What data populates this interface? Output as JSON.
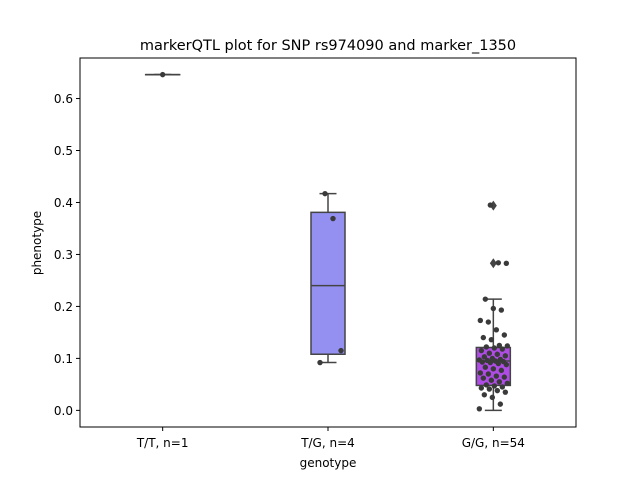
{
  "chart_data": {
    "type": "box",
    "title": "markerQTL plot for SNP rs974090 and marker_1350",
    "xlabel": "genotype",
    "ylabel": "phenotype",
    "ylim": [
      -0.032,
      0.678
    ],
    "yticks": [
      0.0,
      0.1,
      0.2,
      0.3,
      0.4,
      0.5,
      0.6
    ],
    "ytick_labels": [
      "0.0",
      "0.1",
      "0.2",
      "0.3",
      "0.4",
      "0.5",
      "0.6"
    ],
    "categories": [
      "T/T, n=1",
      "T/G, n=4",
      "G/G, n=54"
    ],
    "colors": [
      "#5a5ae0",
      "#9490f2",
      "#b04ce6"
    ],
    "point_color": "#3a3a3a",
    "groups": [
      {
        "label": "T/T, n=1",
        "q1": 0.646,
        "median": 0.646,
        "q3": 0.646,
        "whisker_low": 0.646,
        "whisker_high": 0.646,
        "outliers": [],
        "points": [
          0.646
        ]
      },
      {
        "label": "T/G, n=4",
        "q1": 0.108,
        "median": 0.24,
        "q3": 0.381,
        "whisker_low": 0.092,
        "whisker_high": 0.417,
        "outliers": [],
        "points": [
          0.417,
          0.369,
          0.115,
          0.092
        ]
      },
      {
        "label": "G/G, n=54",
        "q1": 0.048,
        "median": 0.095,
        "q3": 0.121,
        "whisker_low": 0.0,
        "whisker_high": 0.214,
        "outliers": [
          0.394,
          0.283
        ],
        "points": [
          0.395,
          0.284,
          0.283,
          0.214,
          0.196,
          0.193,
          0.173,
          0.17,
          0.155,
          0.145,
          0.14,
          0.136,
          0.125,
          0.124,
          0.122,
          0.12,
          0.118,
          0.115,
          0.11,
          0.108,
          0.105,
          0.103,
          0.1,
          0.098,
          0.097,
          0.096,
          0.095,
          0.094,
          0.093,
          0.092,
          0.09,
          0.088,
          0.083,
          0.08,
          0.077,
          0.072,
          0.07,
          0.066,
          0.064,
          0.062,
          0.058,
          0.055,
          0.052,
          0.049,
          0.047,
          0.045,
          0.043,
          0.041,
          0.038,
          0.035,
          0.03,
          0.025,
          0.012,
          0.003
        ]
      }
    ]
  }
}
